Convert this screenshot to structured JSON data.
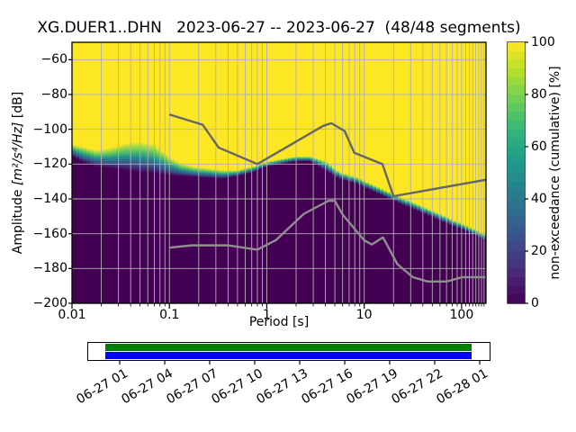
{
  "title": "XG.DUER1..DHN   2023-06-27 -- 2023-06-27  (48/48 segments)",
  "axes": {
    "x": {
      "label": "Period [s]",
      "scale": "log",
      "range": [
        0.01,
        178
      ],
      "ticks": [
        {
          "v": 0.01,
          "label": "0.01"
        },
        {
          "v": 0.1,
          "label": "0.1"
        },
        {
          "v": 1,
          "label": "1"
        },
        {
          "v": 10,
          "label": "10"
        },
        {
          "v": 100,
          "label": "100"
        }
      ]
    },
    "y": {
      "label_prefix": "Amplitude ",
      "label_math": "[m²/s⁴/Hz]",
      "label_suffix": " [dB]",
      "range": [
        -200,
        -50
      ],
      "ticks": [
        {
          "v": -60,
          "label": "−60"
        },
        {
          "v": -80,
          "label": "−80"
        },
        {
          "v": -100,
          "label": "−100"
        },
        {
          "v": -120,
          "label": "−120"
        },
        {
          "v": -140,
          "label": "−140"
        },
        {
          "v": -160,
          "label": "−160"
        },
        {
          "v": -180,
          "label": "−180"
        },
        {
          "v": -200,
          "label": "−200"
        }
      ]
    }
  },
  "colorbar": {
    "label": "non-exceedance (cumulative) [%]",
    "range": [
      0,
      100
    ],
    "steps": 30,
    "colormap": "viridis",
    "viridis_stops": [
      "#440154",
      "#482878",
      "#3e4989",
      "#31688e",
      "#26828e",
      "#1f9e89",
      "#35b779",
      "#6ece58",
      "#b5de2b",
      "#fde725"
    ],
    "ticks": [
      {
        "v": 0,
        "label": "0"
      },
      {
        "v": 20,
        "label": "20"
      },
      {
        "v": 40,
        "label": "40"
      },
      {
        "v": 60,
        "label": "60"
      },
      {
        "v": 80,
        "label": "80"
      },
      {
        "v": 100,
        "label": "100"
      }
    ]
  },
  "timeline": {
    "coverage_color": "#008000",
    "extent_color": "#0000ff",
    "tick_labels": [
      "06-27 01",
      "06-27 04",
      "06-27 07",
      "06-27 10",
      "06-27 13",
      "06-27 16",
      "06-27 19",
      "06-27 22",
      "06-28 01"
    ]
  },
  "chart_data": {
    "type": "heatmap",
    "subtype": "ppsd-cumulative",
    "title": "XG.DUER1..DHN   2023-06-27 -- 2023-06-27  (48/48 segments)",
    "xlabel": "Period [s]",
    "ylabel": "Amplitude [m²/s⁴/Hz] [dB]",
    "zlabel": "non-exceedance (cumulative) [%]",
    "xscale": "log",
    "xlim": [
      0.01,
      178
    ],
    "ylim": [
      -200,
      -50
    ],
    "zlim": [
      0,
      100
    ],
    "grid": true,
    "boundary": {
      "comment_periods_s": "PSD distribution: above db_top non-exceedance=100% (yellow), below db_bottom =0% (purple)",
      "periods": [
        0.01,
        0.013,
        0.018,
        0.025,
        0.035,
        0.05,
        0.07,
        0.095,
        0.13,
        0.18,
        0.25,
        0.35,
        0.5,
        0.7,
        1.0,
        1.4,
        2.0,
        2.8,
        4.0,
        5.6,
        8.0,
        11,
        16,
        22,
        32,
        45,
        63,
        90,
        125,
        178
      ],
      "db_top": [
        -108.5,
        -110,
        -112,
        -110.5,
        -108,
        -107,
        -108.5,
        -115,
        -119.5,
        -121.5,
        -122.5,
        -123.5,
        -123.5,
        -121.5,
        -118.5,
        -117,
        -115.5,
        -115.5,
        -118,
        -124.5,
        -127,
        -130.5,
        -134.5,
        -138,
        -142,
        -145.5,
        -149,
        -153,
        -156.5,
        -160.5
      ],
      "db_bottom": [
        -115.5,
        -119,
        -121.5,
        -122.5,
        -123.5,
        -125,
        -125.5,
        -126.5,
        -127,
        -127.5,
        -128,
        -128.5,
        -127,
        -125,
        -121.5,
        -120,
        -118.5,
        -118.5,
        -124,
        -128.5,
        -131,
        -134.5,
        -138.5,
        -142,
        -146,
        -149.5,
        -153,
        -156.5,
        -160,
        -164
      ]
    },
    "noise_models": {
      "high_noise_model": [
        [
          0.1,
          -91.5
        ],
        [
          0.22,
          -97.4
        ],
        [
          0.32,
          -110.5
        ],
        [
          0.8,
          -120.0
        ],
        [
          3.8,
          -98.0
        ],
        [
          4.6,
          -96.5
        ],
        [
          6.3,
          -101.0
        ],
        [
          7.9,
          -113.5
        ],
        [
          15.4,
          -120.0
        ],
        [
          20.0,
          -138.5
        ],
        [
          178.0,
          -129.0
        ]
      ],
      "low_noise_model": [
        [
          0.1,
          -168.0
        ],
        [
          0.17,
          -166.7
        ],
        [
          0.4,
          -166.7
        ],
        [
          0.8,
          -169.2
        ],
        [
          1.24,
          -163.7
        ],
        [
          2.4,
          -148.6
        ],
        [
          4.3,
          -141.1
        ],
        [
          5.0,
          -141.1
        ],
        [
          6.0,
          -149.0
        ],
        [
          10.0,
          -163.8
        ],
        [
          12.0,
          -166.2
        ],
        [
          15.6,
          -162.1
        ],
        [
          21.9,
          -177.5
        ],
        [
          31.6,
          -185.0
        ],
        [
          45.0,
          -187.5
        ],
        [
          70.0,
          -187.5
        ],
        [
          101.0,
          -185.0
        ],
        [
          178.0,
          -185.0
        ]
      ]
    }
  }
}
